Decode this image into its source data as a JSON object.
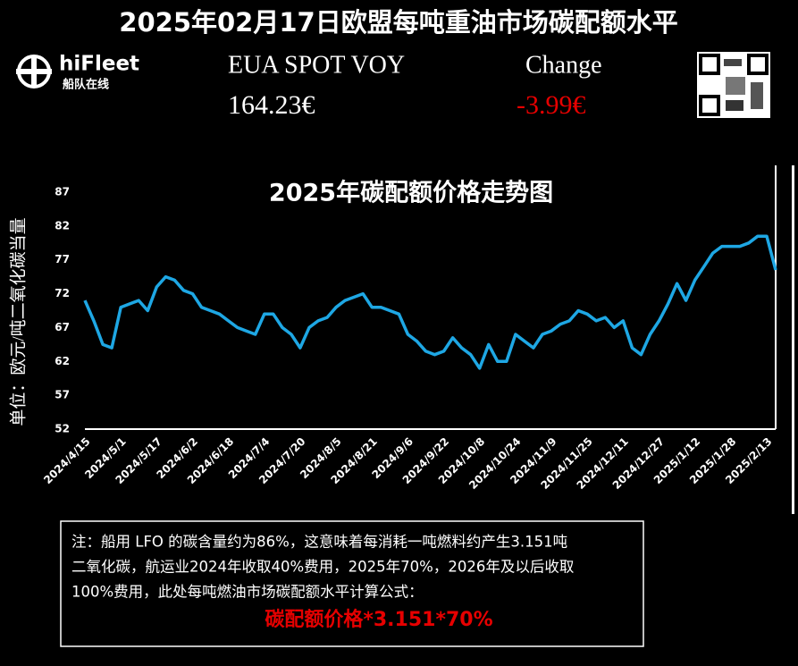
{
  "header": {
    "title": "2025年02月17日欧盟每吨重油市场碳配额水平",
    "brand": "hiFleet",
    "brand_sub": "船队在线",
    "price_name": "EUA SPOT VOY",
    "price": "164.23€",
    "change_name": "Change",
    "change": "-3.99€"
  },
  "chart_data": {
    "type": "line",
    "title": "2025年碳配额价格走势图",
    "y_label": "单位：欧元/吨二氧化碳当量",
    "categories": [
      "2024/4/15",
      null,
      null,
      null,
      "2024/5/1",
      null,
      null,
      null,
      "2024/5/17",
      null,
      null,
      null,
      "2024/6/2",
      null,
      null,
      null,
      "2024/6/18",
      null,
      null,
      null,
      "2024/7/4",
      null,
      null,
      null,
      "2024/7/20",
      null,
      null,
      null,
      "2024/8/5",
      null,
      null,
      null,
      "2024/8/21",
      null,
      null,
      null,
      "2024/9/6",
      null,
      null,
      null,
      "2024/9/22",
      null,
      null,
      null,
      "2024/10/8",
      null,
      null,
      null,
      "2024/10/24",
      null,
      null,
      null,
      "2024/11/9",
      null,
      null,
      null,
      "2024/11/25",
      null,
      null,
      null,
      "2024/12/11",
      null,
      null,
      null,
      "2024/12/27",
      null,
      null,
      null,
      "2025/1/12",
      null,
      null,
      null,
      "2025/1/28",
      null,
      null,
      null,
      "2025/2/13",
      null
    ],
    "values": [
      71,
      68,
      64.5,
      64,
      70,
      70.5,
      71,
      69.5,
      73,
      74.5,
      74,
      72.5,
      72,
      70,
      69.5,
      69,
      68,
      67,
      66.5,
      66,
      69,
      69,
      67,
      66,
      64,
      67,
      68,
      68.5,
      70,
      71,
      71.5,
      72,
      70,
      70,
      69.5,
      69,
      66,
      65,
      63.5,
      63,
      63.5,
      65.5,
      64,
      63,
      61,
      64.5,
      62,
      62,
      66,
      65,
      64,
      66,
      66.5,
      67.5,
      68,
      69.5,
      69,
      68,
      68.5,
      67,
      68,
      64,
      63,
      66,
      68,
      70.5,
      73.5,
      71,
      74,
      76,
      78,
      79,
      79,
      79,
      79.5,
      80.5,
      80.5,
      75.5
    ],
    "color": "#1ea7e4",
    "ylim": [
      52,
      87
    ],
    "yticks": [
      52,
      57,
      62,
      67,
      72,
      77,
      82,
      87
    ],
    "grid": false
  },
  "note": {
    "lines": [
      "注：船用 LFO 的碳含量约为86%，这意味着每消耗一吨燃料约产生3.151吨",
      "二氧化碳，航运业2024年收取40%费用，2025年70%，2026年及以后收取",
      "100%费用，此处每吨燃油市场碳配额水平计算公式："
    ],
    "formula": "碳配额价格*3.151*70%"
  }
}
